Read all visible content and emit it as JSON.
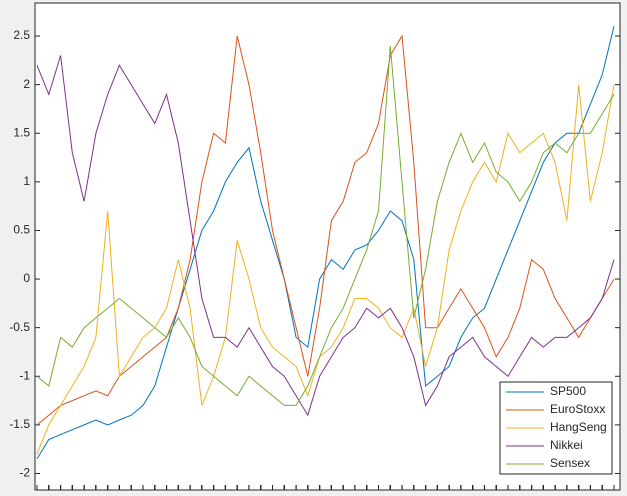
{
  "chart_data": {
    "type": "line",
    "ylim": [
      -2.17,
      2.84
    ],
    "yticks": [
      -2,
      -1.5,
      -1,
      -0.5,
      0,
      0.5,
      1,
      1.5,
      2,
      2.5
    ],
    "legend": "lower right",
    "series": [
      {
        "name": "SP500",
        "color": "#0072BD",
        "values": [
          -1.85,
          -1.65,
          -1.6,
          -1.55,
          -1.5,
          -1.45,
          -1.5,
          -1.45,
          -1.4,
          -1.3,
          -1.1,
          -0.7,
          -0.3,
          0.1,
          0.5,
          0.7,
          1.0,
          1.2,
          1.35,
          0.8,
          0.4,
          0.0,
          -0.6,
          -0.7,
          0.0,
          0.2,
          0.1,
          0.3,
          0.35,
          0.5,
          0.7,
          0.6,
          0.2,
          -1.1,
          -1.0,
          -0.9,
          -0.6,
          -0.4,
          -0.3,
          0.0,
          0.3,
          0.6,
          0.9,
          1.2,
          1.4,
          1.5,
          1.5,
          1.8,
          2.1,
          2.6
        ]
      },
      {
        "name": "EuroStoxx",
        "color": "#D95319",
        "values": [
          -1.5,
          -1.4,
          -1.3,
          -1.25,
          -1.2,
          -1.15,
          -1.2,
          -1.0,
          -0.9,
          -0.8,
          -0.7,
          -0.6,
          -0.3,
          0.2,
          1.0,
          1.5,
          1.4,
          2.5,
          2.0,
          1.3,
          0.5,
          0.0,
          -0.5,
          -1.0,
          -0.3,
          0.6,
          0.8,
          1.2,
          1.3,
          1.6,
          2.3,
          2.5,
          1.2,
          -0.5,
          -0.5,
          -0.3,
          -0.1,
          -0.3,
          -0.5,
          -0.8,
          -0.6,
          -0.3,
          0.2,
          0.1,
          -0.2,
          -0.4,
          -0.6,
          -0.4,
          -0.2,
          0.0
        ]
      },
      {
        "name": "HangSeng",
        "color": "#EDB120",
        "values": [
          -1.8,
          -1.5,
          -1.3,
          -1.1,
          -0.9,
          -0.6,
          0.7,
          -1.0,
          -0.8,
          -0.6,
          -0.5,
          -0.3,
          0.2,
          -0.3,
          -1.3,
          -1.0,
          -0.6,
          0.4,
          0.0,
          -0.5,
          -0.7,
          -0.8,
          -0.9,
          -1.2,
          -0.8,
          -0.7,
          -0.5,
          -0.2,
          -0.2,
          -0.3,
          -0.5,
          -0.6,
          -0.3,
          -0.9,
          -0.5,
          0.3,
          0.7,
          1.0,
          1.2,
          1.0,
          1.5,
          1.3,
          1.4,
          1.5,
          1.2,
          0.6,
          2.0,
          0.8,
          1.3,
          2.0
        ]
      },
      {
        "name": "Nikkei",
        "color": "#7E2F8E",
        "values": [
          2.2,
          1.9,
          2.3,
          1.3,
          0.8,
          1.5,
          1.9,
          2.2,
          2.0,
          1.8,
          1.6,
          1.9,
          1.4,
          0.6,
          -0.2,
          -0.6,
          -0.6,
          -0.7,
          -0.5,
          -0.7,
          -0.9,
          -1.0,
          -1.2,
          -1.4,
          -1.0,
          -0.8,
          -0.6,
          -0.5,
          -0.3,
          -0.4,
          -0.3,
          -0.5,
          -0.8,
          -1.3,
          -1.1,
          -0.8,
          -0.7,
          -0.6,
          -0.8,
          -0.9,
          -1.0,
          -0.8,
          -0.6,
          -0.7,
          -0.6,
          -0.6,
          -0.5,
          -0.4,
          -0.2,
          0.2
        ]
      },
      {
        "name": "Sensex",
        "color": "#77AC30",
        "values": [
          -1.0,
          -1.1,
          -0.6,
          -0.7,
          -0.5,
          -0.4,
          -0.3,
          -0.2,
          -0.3,
          -0.4,
          -0.5,
          -0.6,
          -0.4,
          -0.6,
          -0.9,
          -1.0,
          -1.1,
          -1.2,
          -1.0,
          -1.1,
          -1.2,
          -1.3,
          -1.3,
          -1.1,
          -0.8,
          -0.5,
          -0.3,
          0.0,
          0.3,
          0.7,
          2.4,
          1.0,
          -0.4,
          0.1,
          0.8,
          1.2,
          1.5,
          1.2,
          1.4,
          1.1,
          1.0,
          0.8,
          1.0,
          1.3,
          1.4,
          1.3,
          1.5,
          1.5,
          1.7,
          1.9
        ]
      }
    ]
  }
}
